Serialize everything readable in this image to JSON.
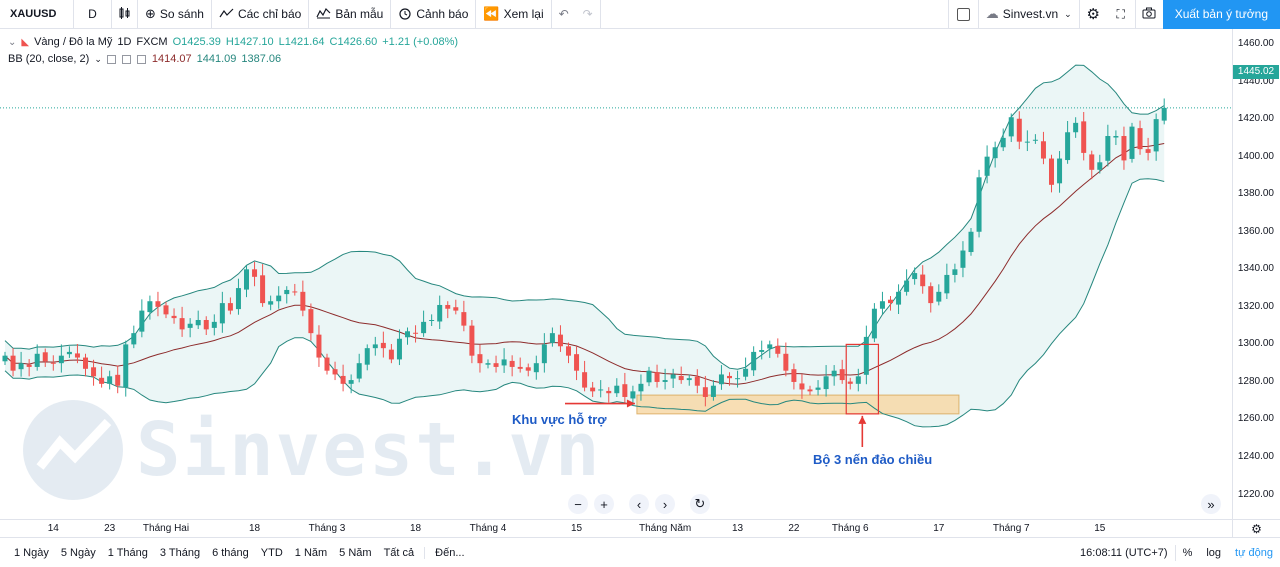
{
  "toolbar": {
    "symbol": "XAUUSD",
    "interval": "D",
    "compare_label": "So sánh",
    "indicators_label": "Các chỉ báo",
    "templates_label": "Bản mẫu",
    "alert_label": "Cảnh báo",
    "replay_label": "Xem lại",
    "site_label": "Sinvest.vn",
    "publish_label": "Xuất bản ý tưởng"
  },
  "legend": {
    "title": "Vàng / Đô la Mỹ",
    "interval": "1D",
    "exchange": "FXCM",
    "open": "O1425.39",
    "high": "H1427.10",
    "low": "L1421.64",
    "close": "C1426.60",
    "change": "+1.21 (+0.08%)",
    "bb_label": "BB (20, close, 2)",
    "bb_basis": "1414.07",
    "bb_upper": "1441.09",
    "bb_lower": "1387.06"
  },
  "watermark": "Sinvest.vn",
  "annotations": {
    "support": "Khu vực hỗ trợ",
    "reversal": "Bộ 3 nến đảo chiều"
  },
  "last_price": "1445.02",
  "colors": {
    "up": "#26a69a",
    "down": "#ef5350",
    "bb_line": "#26877e",
    "bb_fill": "#e6f4f4",
    "basis": "#8d2c2c",
    "support_zone": "#f7d9a8",
    "annotation_red": "#e53935",
    "annotation_blue": "#1e5bc6"
  },
  "chart_data": {
    "type": "candlestick",
    "y_ticks": [
      1220,
      1240,
      1260,
      1280,
      1300,
      1320,
      1340,
      1360,
      1380,
      1400,
      1420,
      1440,
      1460
    ],
    "ylim": [
      1207,
      1468
    ],
    "x_tick_labels": [
      {
        "i": 6,
        "label": "14"
      },
      {
        "i": 13,
        "label": "23"
      },
      {
        "i": 20,
        "label": "Tháng Hai"
      },
      {
        "i": 31,
        "label": "18"
      },
      {
        "i": 40,
        "label": "Tháng 3"
      },
      {
        "i": 51,
        "label": "18"
      },
      {
        "i": 60,
        "label": "Tháng 4"
      },
      {
        "i": 71,
        "label": "15"
      },
      {
        "i": 82,
        "label": "Tháng Năm"
      },
      {
        "i": 91,
        "label": "13"
      },
      {
        "i": 98,
        "label": "22"
      },
      {
        "i": 105,
        "label": "Tháng 6"
      },
      {
        "i": 116,
        "label": "17"
      },
      {
        "i": 125,
        "label": "Tháng 7"
      },
      {
        "i": 136,
        "label": "15"
      }
    ],
    "close": [
      1294,
      1286,
      1290,
      1288,
      1295,
      1291,
      1290,
      1294,
      1296,
      1293,
      1287,
      1283,
      1279,
      1283,
      1278,
      1300,
      1306,
      1318,
      1323,
      1320,
      1316,
      1314,
      1308,
      1311,
      1313,
      1308,
      1312,
      1322,
      1318,
      1330,
      1340,
      1336,
      1322,
      1323,
      1326,
      1329,
      1328,
      1318,
      1306,
      1293,
      1286,
      1284,
      1279,
      1281,
      1290,
      1298,
      1300,
      1298,
      1292,
      1303,
      1307,
      1306,
      1312,
      1313,
      1321,
      1319,
      1318,
      1310,
      1294,
      1290,
      1290,
      1288,
      1292,
      1288,
      1287,
      1286,
      1290,
      1300,
      1306,
      1299,
      1294,
      1286,
      1277,
      1275,
      1276,
      1274,
      1278,
      1272,
      1275,
      1279,
      1286,
      1280,
      1281,
      1284,
      1281,
      1282,
      1278,
      1272,
      1278,
      1284,
      1282,
      1282,
      1287,
      1296,
      1297,
      1300,
      1295,
      1286,
      1280,
      1276,
      1275,
      1277,
      1283,
      1286,
      1281,
      1279,
      1283,
      1304,
      1319,
      1323,
      1322,
      1328,
      1334,
      1338,
      1331,
      1322,
      1328,
      1337,
      1340,
      1350,
      1360,
      1389,
      1400,
      1405,
      1410,
      1421,
      1408,
      1408,
      1409,
      1399,
      1385,
      1399,
      1413,
      1418,
      1402,
      1393,
      1397,
      1411,
      1411,
      1398,
      1416,
      1404,
      1402,
      1420,
      1426
    ],
    "series": [
      {
        "name": "BB (20, close, 2)",
        "values": []
      }
    ]
  },
  "bottom_bar": {
    "ranges": [
      "1 Ngày",
      "5 Ngày",
      "1 Tháng",
      "3 Tháng",
      "6 tháng",
      "YTD",
      "1 Năm",
      "5 Năm",
      "Tất cả"
    ],
    "goto_label": "Đến...",
    "time": "16:08:11 (UTC+7)",
    "percent_label": "%",
    "log_label": "log",
    "auto_label": "tự động"
  }
}
